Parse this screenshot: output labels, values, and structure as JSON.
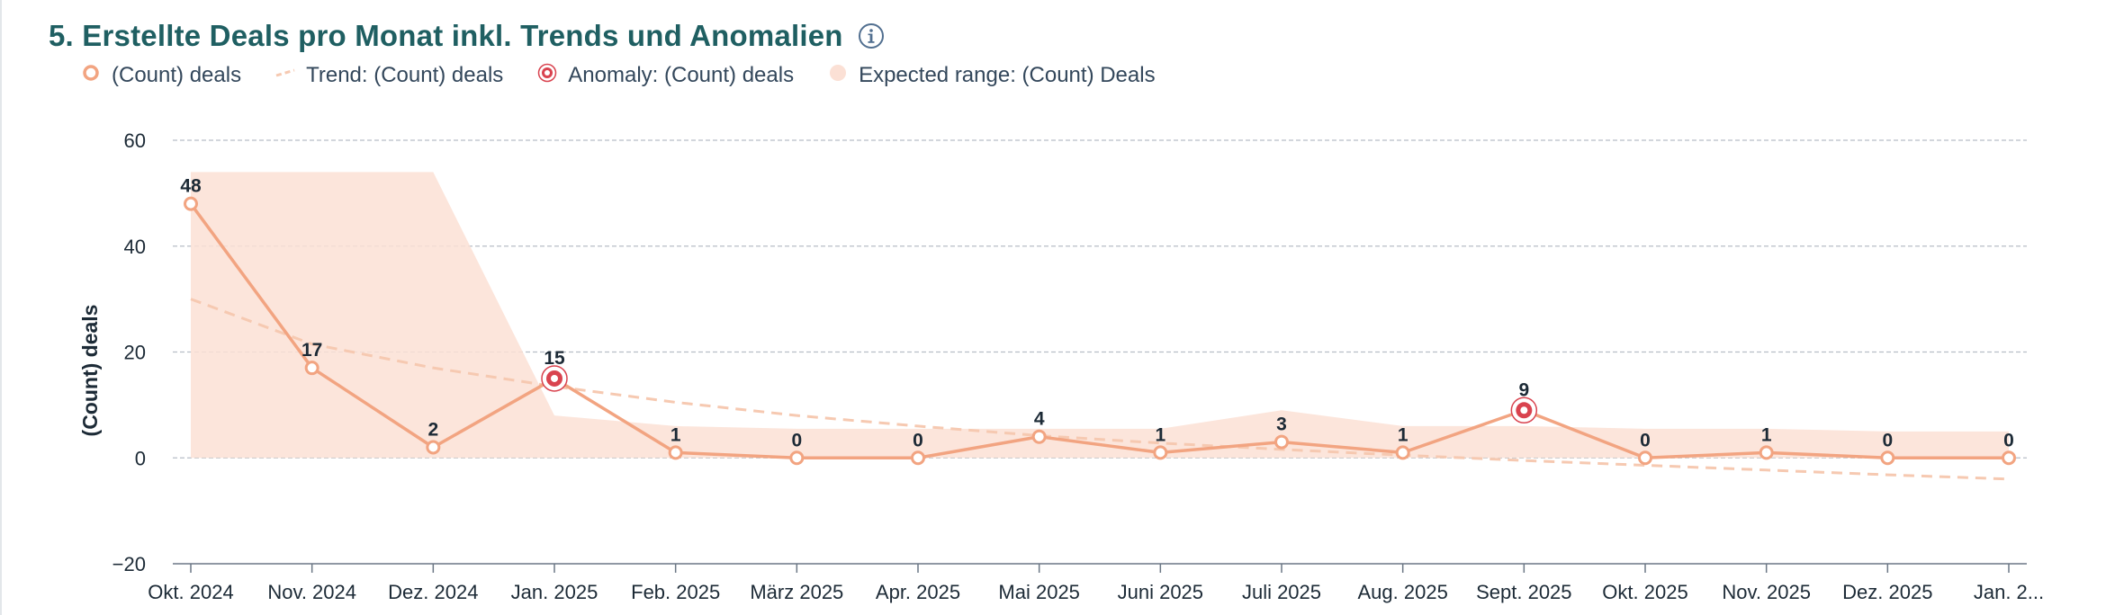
{
  "card": {
    "title": "5. Erstellte Deals pro Monat inkl. Trends und Anomalien",
    "info_icon": "info-circle-icon"
  },
  "legend": {
    "items": [
      {
        "label": "(Count) deals",
        "icon": "hollow-circle-marker"
      },
      {
        "label": "Trend: (Count) deals",
        "icon": "dashed-line"
      },
      {
        "label": "Anomaly: (Count) deals",
        "icon": "anomaly-target-marker"
      },
      {
        "label": "Expected range: (Count) Deals",
        "icon": "filled-circle"
      }
    ]
  },
  "colors": {
    "series": "#f2a481",
    "trend": "#f6c9b1",
    "range_fill": "#fbe0d5",
    "anomaly": "#d9434f",
    "grid": "#b7bec6",
    "title": "#1f5f62",
    "text": "#1c2a36"
  },
  "chart_data": {
    "type": "line",
    "title": "5. Erstellte Deals pro Monat inkl. Trends und Anomalien",
    "xlabel": "",
    "ylabel": "(Count) deals",
    "ylim": [
      -20,
      60
    ],
    "yticks": [
      -20,
      0,
      20,
      40,
      60
    ],
    "grid": true,
    "legend_position": "top-left",
    "categories": [
      "Okt. 2024",
      "Nov. 2024",
      "Dez. 2024",
      "Jan. 2025",
      "Feb. 2025",
      "März 2025",
      "Apr. 2025",
      "Mai 2025",
      "Juni 2025",
      "Juli 2025",
      "Aug. 2025",
      "Sept. 2025",
      "Okt. 2025",
      "Nov. 2025",
      "Dez. 2025",
      "Jan. 2..."
    ],
    "series": [
      {
        "name": "(Count) deals",
        "values": [
          48,
          17,
          2,
          15,
          1,
          0,
          0,
          4,
          1,
          3,
          1,
          9,
          0,
          1,
          0,
          0
        ]
      },
      {
        "name": "Trend: (Count) deals",
        "values": [
          30,
          21.5,
          17,
          13.5,
          10.5,
          8,
          6,
          4.2,
          2.8,
          1.6,
          0.5,
          -0.5,
          -1.4,
          -2.3,
          -3.2,
          -4
        ]
      },
      {
        "name": "Expected range: (Count) Deals",
        "upper": [
          54,
          54,
          54,
          8,
          6,
          5.5,
          5.5,
          5.5,
          5.5,
          9,
          6,
          6,
          5.5,
          5.5,
          5,
          5
        ],
        "lower": [
          0,
          0,
          0,
          0,
          0,
          0,
          0,
          0,
          0,
          0,
          0,
          0,
          0,
          0,
          0,
          0
        ]
      }
    ],
    "anomalies": [
      {
        "category": "Jan. 2025",
        "value": 15
      },
      {
        "category": "Sept. 2025",
        "value": 9
      }
    ],
    "data_labels": [
      "48",
      "17",
      "2",
      "15",
      "1",
      "0",
      "0",
      "4",
      "1",
      "3",
      "1",
      "9",
      "0",
      "1",
      "0",
      "0"
    ]
  }
}
